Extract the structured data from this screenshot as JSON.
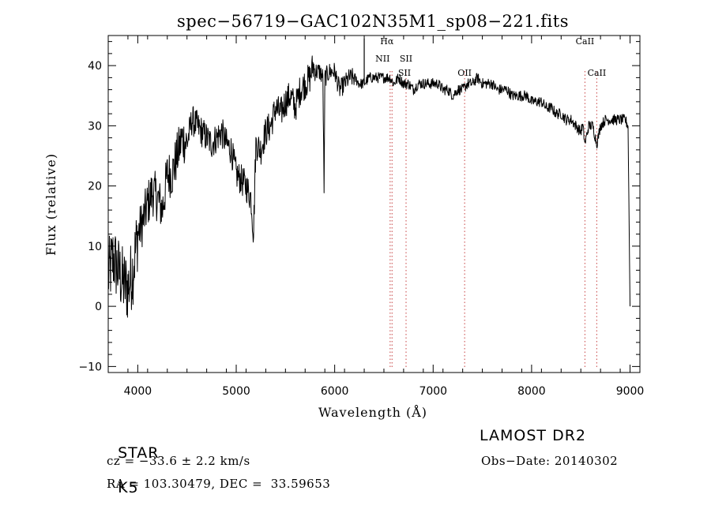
{
  "chart_data": {
    "type": "line",
    "title": "spec−56719−GAC102N35M1_sp08−221.fits",
    "xlabel": "Wavelength (Å)",
    "ylabel": "Flux (relative)",
    "xlim": [
      3700,
      9100
    ],
    "ylim": [
      -11,
      45
    ],
    "xticks": [
      4000,
      5000,
      6000,
      7000,
      8000,
      9000
    ],
    "yticks": [
      -10,
      0,
      10,
      20,
      30,
      40
    ],
    "ytick_labels": [
      "−10",
      "0",
      "10",
      "20",
      "30",
      "40"
    ],
    "grid": false,
    "series": [
      {
        "x": [
          3700,
          3750,
          3800,
          3850,
          3900,
          3950,
          4000,
          4050,
          4100,
          4150,
          4200,
          4250,
          4300,
          4350,
          4400,
          4450,
          4500,
          4550,
          4600,
          4650,
          4700,
          4750,
          4800,
          4850,
          4900,
          4950,
          5000,
          5050,
          5100,
          5150,
          5175,
          5200,
          5250,
          5300,
          5350,
          5400,
          5450,
          5500,
          5550,
          5600,
          5650,
          5700,
          5750,
          5780,
          5800,
          5850,
          5880,
          5893,
          5900,
          5950,
          6000,
          6050,
          6100,
          6150,
          6200,
          6250,
          6300,
          6350,
          6400,
          6450,
          6500,
          6563,
          6600,
          6650,
          6700,
          6750,
          6800,
          6850,
          6900,
          6950,
          7000,
          7050,
          7100,
          7150,
          7200,
          7250,
          7300,
          7350,
          7400,
          7450,
          7500,
          7550,
          7600,
          7650,
          7700,
          7750,
          7800,
          7850,
          7900,
          7950,
          8000,
          8050,
          8100,
          8150,
          8200,
          8250,
          8300,
          8350,
          8400,
          8450,
          8498,
          8520,
          8542,
          8580,
          8620,
          8662,
          8700,
          8750,
          8800,
          8850,
          8900,
          8950,
          8980,
          9000
        ],
        "y": [
          5,
          8,
          6,
          4,
          3,
          6,
          12,
          14,
          17,
          19,
          18,
          16,
          22,
          22,
          25,
          28,
          27,
          31,
          30,
          29,
          28,
          27,
          28,
          29,
          27,
          26,
          22,
          21,
          20,
          18,
          12,
          27,
          26,
          29,
          30,
          33,
          32,
          34,
          35,
          33,
          36,
          37,
          38,
          40,
          39,
          39,
          38,
          18,
          38,
          39,
          39,
          36,
          37,
          38,
          38,
          37,
          37,
          38,
          38,
          38,
          38,
          38,
          37,
          38,
          37,
          37,
          36,
          37,
          37,
          37,
          37,
          37,
          36,
          36,
          35,
          36,
          36,
          37,
          37,
          38,
          37,
          37,
          37,
          36,
          36,
          36,
          35,
          35,
          35,
          35,
          34,
          34,
          34,
          33,
          33,
          32,
          32,
          31,
          31,
          30,
          29,
          30,
          27,
          30,
          30,
          27,
          30,
          31,
          31,
          31,
          31,
          31,
          30,
          0
        ]
      }
    ],
    "lines": [
      {
        "x": 6563,
        "labels": [
          "Hα"
        ]
      },
      {
        "x": 6583,
        "labels": [
          "NII"
        ]
      },
      {
        "x": 6725,
        "labels": [
          "SII",
          "SII"
        ]
      },
      {
        "x": 7320,
        "labels": [
          "OII"
        ]
      },
      {
        "x": 8542,
        "labels": [
          "CaII"
        ]
      },
      {
        "x": 8662,
        "labels": [
          "CaII"
        ]
      }
    ]
  },
  "info": {
    "object_class": "STAR",
    "subclass": "K5",
    "survey": "LAMOST DR2",
    "redshift": "cz = −33.6 ± 2.2 km/s",
    "obs_date": "Obs−Date: 20140302",
    "coords": "RA = 103.30479, DEC =  33.59653"
  }
}
